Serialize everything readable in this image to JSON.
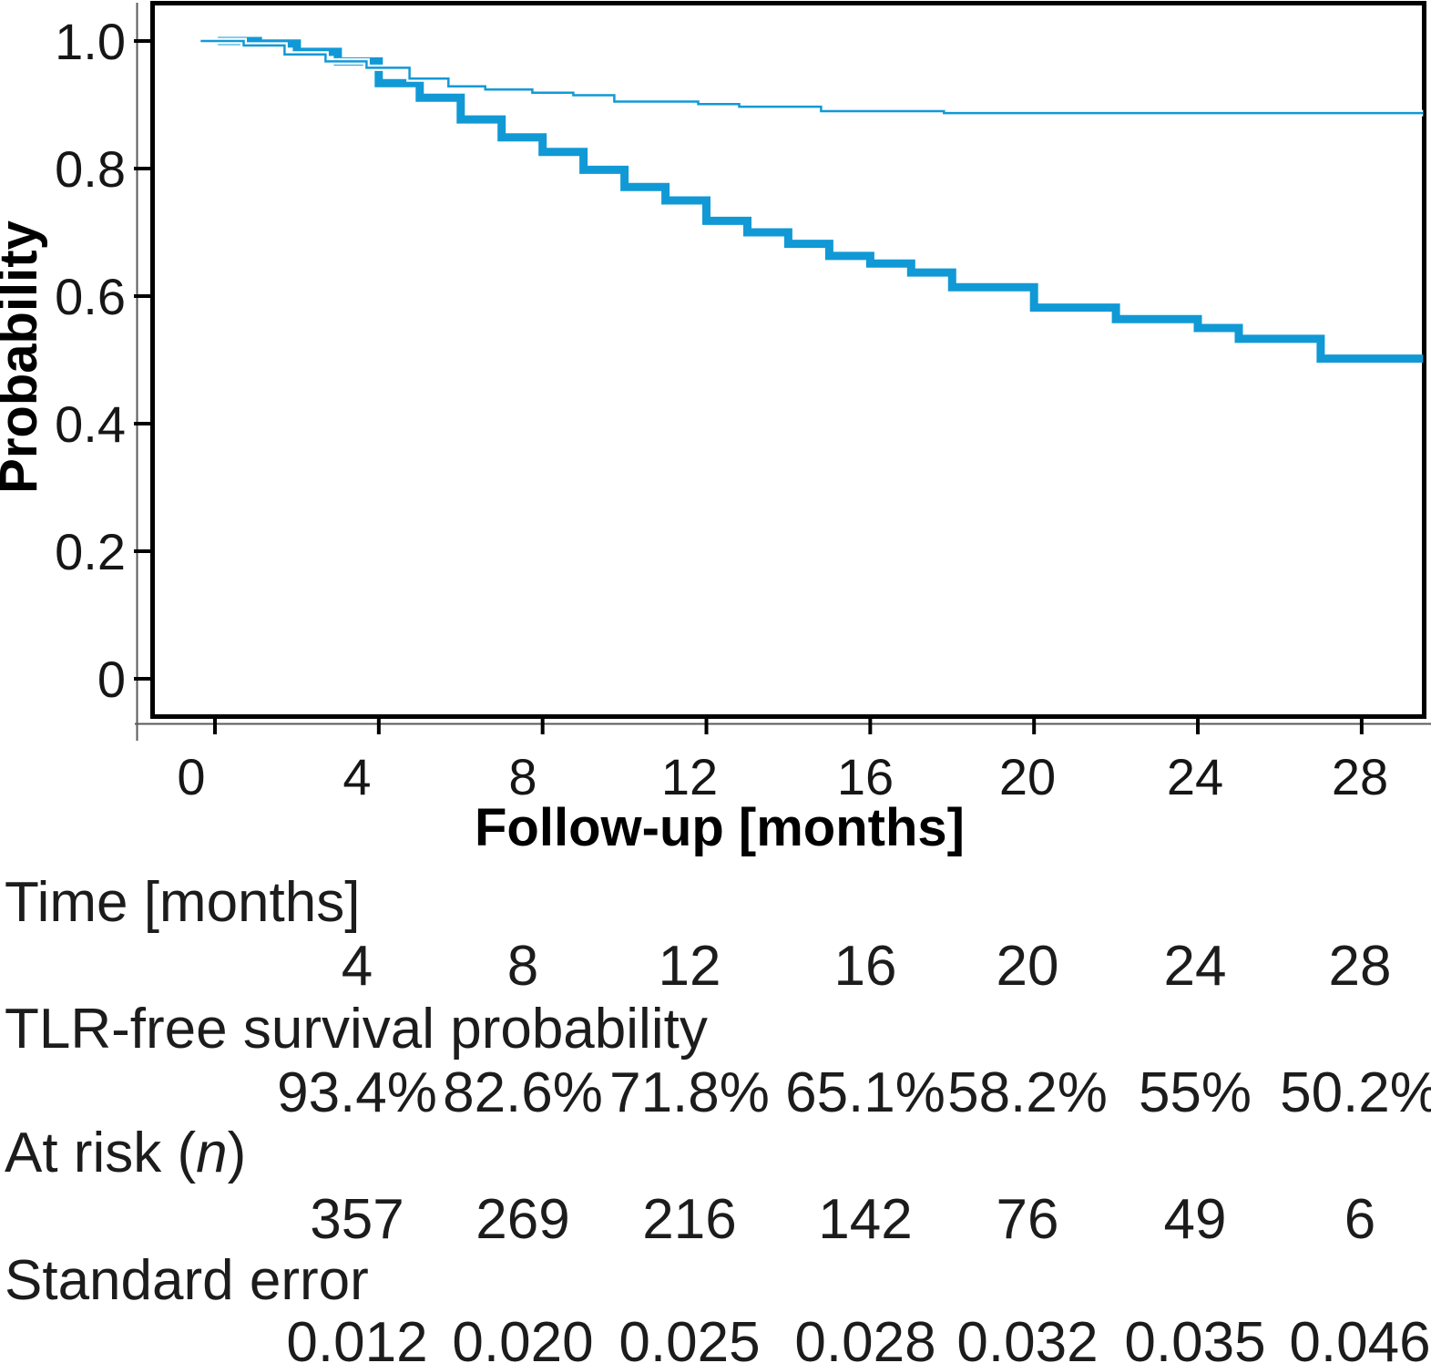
{
  "figure": {
    "y_axis": {
      "label": "Probability",
      "ticks": [
        "1.0",
        "0.8",
        "0.6",
        "0.4",
        "0.2",
        "0"
      ],
      "tick_values": [
        1.0,
        0.8,
        0.6,
        0.4,
        0.2,
        0
      ]
    },
    "x_axis": {
      "label": "Follow-up [months]",
      "ticks": [
        "0",
        "4",
        "8",
        "12",
        "16",
        "20",
        "24",
        "28"
      ],
      "tick_values": [
        0,
        4,
        8,
        12,
        16,
        20,
        24,
        28
      ]
    }
  },
  "chart_data": {
    "type": "line",
    "subtype": "kaplan-meier-step",
    "title": "",
    "xlabel": "Follow-up [months]",
    "ylabel": "Probability",
    "xlim": [
      -1.5,
      29.6
    ],
    "ylim": [
      -0.05,
      1.06
    ],
    "x_ticks": [
      0,
      4,
      8,
      12,
      16,
      20,
      24,
      28
    ],
    "y_ticks": [
      1.0,
      0.8,
      0.6,
      0.4,
      0.2,
      0
    ],
    "grid": false,
    "legend": "none",
    "line_color": "#1199d6",
    "series": [
      {
        "name": "upper-thin-curve",
        "stroke_width": 2.5,
        "casing": true,
        "steps": [
          [
            -0.35,
            1.0
          ],
          [
            0.7,
            0.993
          ],
          [
            1.7,
            0.979
          ],
          [
            2.7,
            0.968
          ],
          [
            3.7,
            0.958
          ],
          [
            4.75,
            0.941
          ],
          [
            5.7,
            0.929
          ],
          [
            6.6,
            0.924
          ],
          [
            7.75,
            0.919
          ],
          [
            8.75,
            0.915
          ],
          [
            9.75,
            0.905
          ],
          [
            11.8,
            0.901
          ],
          [
            12.8,
            0.897
          ],
          [
            14.8,
            0.89
          ],
          [
            17.8,
            0.887
          ],
          [
            29.5,
            0.887
          ]
        ]
      },
      {
        "name": "TLR-free-survival-thick-curve",
        "stroke_width": 9,
        "casing": false,
        "steps": [
          [
            0.07,
            1.0
          ],
          [
            1.05,
            0.996
          ],
          [
            2,
            0.983
          ],
          [
            3,
            0.968
          ],
          [
            4,
            0.934
          ],
          [
            5,
            0.911
          ],
          [
            6,
            0.877
          ],
          [
            7,
            0.849
          ],
          [
            8,
            0.826
          ],
          [
            9,
            0.798
          ],
          [
            10,
            0.771
          ],
          [
            11,
            0.75
          ],
          [
            12,
            0.718
          ],
          [
            13,
            0.7
          ],
          [
            14,
            0.682
          ],
          [
            15,
            0.663
          ],
          [
            16,
            0.651
          ],
          [
            17,
            0.637
          ],
          [
            18,
            0.614
          ],
          [
            20,
            0.582
          ],
          [
            22,
            0.564
          ],
          [
            24,
            0.55
          ],
          [
            25,
            0.533
          ],
          [
            27,
            0.502
          ],
          [
            29.5,
            0.502
          ]
        ]
      }
    ]
  },
  "table": {
    "rows": [
      {
        "label_prefix": "Time [months]",
        "label_italic": "",
        "label_suffix": "",
        "values": [
          "4",
          "8",
          "12",
          "16",
          "20",
          "24",
          "28"
        ]
      },
      {
        "label_prefix": "TLR-free survival probability",
        "label_italic": "",
        "label_suffix": "",
        "values": [
          "93.4%",
          "82.6%",
          "71.8%",
          "65.1%",
          "58.2%",
          "55%",
          "50.2%"
        ]
      },
      {
        "label_prefix": "At risk (",
        "label_italic": "n",
        "label_suffix": ")",
        "values": [
          "357",
          "269",
          "216",
          "142",
          "76",
          "49",
          "6"
        ]
      },
      {
        "label_prefix": "Standard error",
        "label_italic": "",
        "label_suffix": "",
        "values": [
          "0.012",
          "0.020",
          "0.025",
          "0.028",
          "0.032",
          "0.035",
          "0.046"
        ]
      }
    ]
  }
}
